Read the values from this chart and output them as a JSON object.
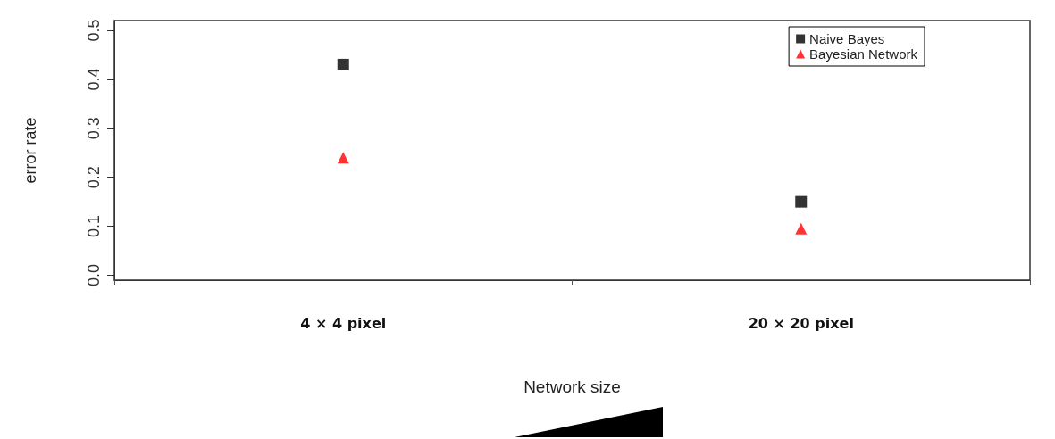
{
  "chart_data": {
    "type": "scatter",
    "xlabel": "Network size",
    "ylabel": "error rate",
    "categories": [
      "4 × 4 pixel",
      "20 × 20 pixel"
    ],
    "series": [
      {
        "name": "Naive Bayes",
        "color": "#000000",
        "marker": "square",
        "values": [
          0.43,
          0.15
        ]
      },
      {
        "name": "Bayesian Network",
        "color": "#ff0000",
        "marker": "triangle",
        "values": [
          0.24,
          0.095
        ]
      }
    ],
    "ylim": [
      -0.01,
      0.52
    ],
    "yticks": [
      {
        "value": 0,
        "label": "0.0"
      },
      0.1,
      0.2,
      0.3,
      0.4,
      0.5
    ],
    "grid": false,
    "legend": "top right"
  }
}
